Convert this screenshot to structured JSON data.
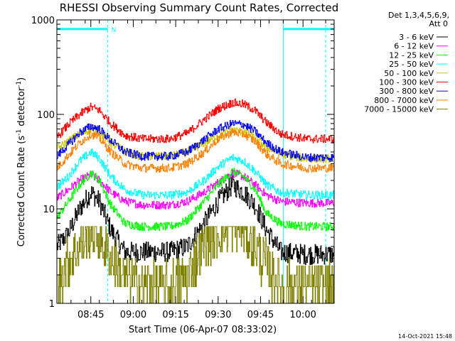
{
  "chart_data": {
    "type": "line",
    "title": "RHESSI Observing Summary Count Rates, Corrected",
    "xlabel": "Start Time (06-Apr-07 08:33:02)",
    "ylabel_main": "Corrected Count Rate (s",
    "ylabel_sup1": "-1",
    "ylabel_mid": " detector",
    "ylabel_sup2": "-1",
    "ylabel_end": ")",
    "yscale": "log",
    "ylim": [
      1,
      1000
    ],
    "xlim_minutes": [
      0,
      98
    ],
    "x_unit": "minutes after 08:33:02",
    "yticks": [
      {
        "value": 1,
        "label": "1"
      },
      {
        "value": 10,
        "label": "10"
      },
      {
        "value": 100,
        "label": "100"
      },
      {
        "value": 1000,
        "label": "1000"
      }
    ],
    "xticks": [
      {
        "minute": 12,
        "label": "08:45"
      },
      {
        "minute": 27,
        "label": "09:00"
      },
      {
        "minute": 42,
        "label": "09:15"
      },
      {
        "minute": 57,
        "label": "09:30"
      },
      {
        "minute": 72,
        "label": "09:45"
      },
      {
        "minute": 87,
        "label": "10:00"
      }
    ],
    "legend": {
      "placement": "right",
      "header": [
        "Det 1,3,4,5,6,9,",
        "Att 0"
      ]
    },
    "series": [
      {
        "name": "3 - 6 keV",
        "color": "#000000",
        "points": [
          [
            0,
            4
          ],
          [
            4,
            5.5
          ],
          [
            8,
            10
          ],
          [
            12,
            15
          ],
          [
            15,
            12
          ],
          [
            19,
            6
          ],
          [
            24,
            3.5
          ],
          [
            30,
            3.5
          ],
          [
            40,
            3.5
          ],
          [
            46,
            4
          ],
          [
            52,
            7
          ],
          [
            57,
            12
          ],
          [
            62,
            18
          ],
          [
            66,
            15
          ],
          [
            70,
            11
          ],
          [
            74,
            6
          ],
          [
            79,
            3.5
          ],
          [
            88,
            3.3
          ],
          [
            98,
            3.3
          ]
        ]
      },
      {
        "name": "6 - 12 keV",
        "color": "#ff00ff",
        "points": [
          [
            0,
            13
          ],
          [
            4,
            16
          ],
          [
            8,
            20
          ],
          [
            12,
            23
          ],
          [
            15,
            20
          ],
          [
            19,
            15
          ],
          [
            24,
            12
          ],
          [
            30,
            11
          ],
          [
            40,
            11
          ],
          [
            46,
            12
          ],
          [
            52,
            15
          ],
          [
            57,
            19
          ],
          [
            62,
            24
          ],
          [
            66,
            22
          ],
          [
            70,
            18
          ],
          [
            74,
            14
          ],
          [
            79,
            12
          ],
          [
            88,
            11.5
          ],
          [
            98,
            11.5
          ]
        ]
      },
      {
        "name": "12 - 25 keV",
        "color": "#00ff00",
        "points": [
          [
            0,
            8
          ],
          [
            4,
            12
          ],
          [
            8,
            18
          ],
          [
            12,
            24
          ],
          [
            15,
            20
          ],
          [
            19,
            11
          ],
          [
            24,
            7
          ],
          [
            30,
            6.5
          ],
          [
            40,
            6.5
          ],
          [
            46,
            7.5
          ],
          [
            52,
            12
          ],
          [
            57,
            18
          ],
          [
            62,
            25
          ],
          [
            66,
            22
          ],
          [
            70,
            16
          ],
          [
            74,
            9
          ],
          [
            79,
            7
          ],
          [
            88,
            6.5
          ],
          [
            98,
            6.5
          ]
        ]
      },
      {
        "name": "25 - 50 keV",
        "color": "#00ffff",
        "points": [
          [
            0,
            17
          ],
          [
            4,
            22
          ],
          [
            8,
            32
          ],
          [
            12,
            40
          ],
          [
            15,
            34
          ],
          [
            19,
            22
          ],
          [
            24,
            16
          ],
          [
            30,
            14
          ],
          [
            40,
            14
          ],
          [
            46,
            15
          ],
          [
            52,
            20
          ],
          [
            57,
            28
          ],
          [
            62,
            35
          ],
          [
            66,
            32
          ],
          [
            70,
            25
          ],
          [
            74,
            18
          ],
          [
            79,
            15
          ],
          [
            88,
            14
          ],
          [
            98,
            14
          ]
        ]
      },
      {
        "name": "50 - 100 keV",
        "color": "#c8c800",
        "points": [
          [
            0,
            43
          ],
          [
            4,
            52
          ],
          [
            8,
            62
          ],
          [
            12,
            70
          ],
          [
            15,
            64
          ],
          [
            19,
            50
          ],
          [
            24,
            40
          ],
          [
            30,
            36
          ],
          [
            40,
            36
          ],
          [
            46,
            40
          ],
          [
            52,
            50
          ],
          [
            57,
            60
          ],
          [
            62,
            68
          ],
          [
            66,
            65
          ],
          [
            70,
            56
          ],
          [
            74,
            45
          ],
          [
            79,
            38
          ],
          [
            88,
            34
          ],
          [
            98,
            34
          ]
        ]
      },
      {
        "name": "100 - 300 keV",
        "color": "#ff0000",
        "points": [
          [
            0,
            57
          ],
          [
            4,
            78
          ],
          [
            8,
            100
          ],
          [
            12,
            120
          ],
          [
            15,
            110
          ],
          [
            19,
            80
          ],
          [
            24,
            60
          ],
          [
            30,
            55
          ],
          [
            40,
            55
          ],
          [
            46,
            63
          ],
          [
            52,
            88
          ],
          [
            57,
            115
          ],
          [
            62,
            133
          ],
          [
            66,
            128
          ],
          [
            70,
            110
          ],
          [
            74,
            82
          ],
          [
            79,
            62
          ],
          [
            88,
            55
          ],
          [
            98,
            55
          ]
        ]
      },
      {
        "name": "300 - 800 keV",
        "color": "#0000ff",
        "points": [
          [
            0,
            36
          ],
          [
            4,
            48
          ],
          [
            8,
            64
          ],
          [
            12,
            75
          ],
          [
            15,
            70
          ],
          [
            19,
            53
          ],
          [
            24,
            40
          ],
          [
            30,
            36
          ],
          [
            40,
            36
          ],
          [
            46,
            40
          ],
          [
            52,
            54
          ],
          [
            57,
            70
          ],
          [
            62,
            80
          ],
          [
            66,
            78
          ],
          [
            70,
            66
          ],
          [
            74,
            50
          ],
          [
            79,
            40
          ],
          [
            88,
            35
          ],
          [
            98,
            35
          ]
        ]
      },
      {
        "name": "800 - 7000 keV",
        "color": "#ff8000",
        "points": [
          [
            0,
            27
          ],
          [
            4,
            37
          ],
          [
            8,
            50
          ],
          [
            12,
            62
          ],
          [
            15,
            56
          ],
          [
            19,
            40
          ],
          [
            24,
            30
          ],
          [
            30,
            27
          ],
          [
            40,
            27
          ],
          [
            46,
            30
          ],
          [
            52,
            40
          ],
          [
            57,
            55
          ],
          [
            62,
            65
          ],
          [
            66,
            62
          ],
          [
            70,
            52
          ],
          [
            74,
            38
          ],
          [
            79,
            30
          ],
          [
            88,
            27
          ],
          [
            98,
            27
          ]
        ]
      },
      {
        "name": "7000 - 15000 keV",
        "color": "#808000",
        "points": [
          [
            0,
            1.5
          ],
          [
            4,
            2.8
          ],
          [
            8,
            4
          ],
          [
            12,
            6
          ],
          [
            15,
            5
          ],
          [
            19,
            3
          ],
          [
            24,
            1.8
          ],
          [
            30,
            1.5
          ],
          [
            40,
            1.5
          ],
          [
            46,
            2
          ],
          [
            52,
            4
          ],
          [
            57,
            6
          ],
          [
            62,
            6.5
          ],
          [
            66,
            6
          ],
          [
            70,
            4
          ],
          [
            74,
            2.5
          ],
          [
            79,
            1.5
          ],
          [
            88,
            1.5
          ],
          [
            98,
            1.5
          ]
        ]
      }
    ],
    "flags": {
      "color": "#00ffff",
      "segments": [
        [
          0,
          18
        ],
        [
          80,
          98
        ]
      ],
      "level": 800,
      "dashed_lines": [
        18,
        95
      ],
      "solid_lines": [
        0,
        80
      ],
      "marker": "N",
      "marker_at": 20
    },
    "footer": "14-Oct-2021 15:48"
  }
}
